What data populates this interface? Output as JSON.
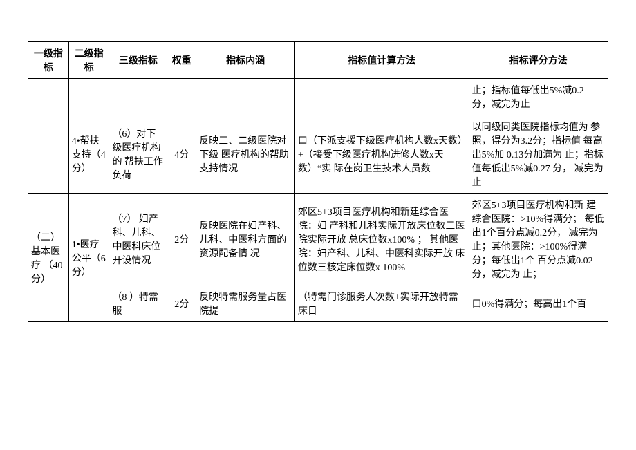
{
  "headers": {
    "l1": "一级指标",
    "l2": "二级指标",
    "l3": "三级指标",
    "w": "权重",
    "c": "指标内涵",
    "m": "指标值计算方法",
    "s": "指标评分方法"
  },
  "rows": {
    "r0": {
      "s": "止；指标值每低出5%减0.2 分，减完为止"
    },
    "r1": {
      "l2": "4•帮扶 支持（4分）",
      "l3": "（6）对下级医疗机构的 帮扶工作负荷",
      "w": "4分",
      "c": "反映三、二级医院对下级 医疗机构的帮助支持情况",
      "m": "口（下派支援下级医疗机构人数x天数）+（接受下级医疗机构进修人数x天数）“实 际在岗卫生技术人员数",
      "s": "以同级同类医院指标均值为 参照，得分为3.2分；指标值 每高出5%加 0.13分加满为 止；指标值每低出5%减0.27 分， 减完为止"
    },
    "r2": {
      "l1": "（二） 基本医 疗 （40 分）",
      "l2": "1•医疗 公平（6分）",
      "l3": "（7） 妇产科、儿科、中医科床位开设情况",
      "w": "2分",
      "c": "反映医院在妇产科、儿科、中医科方面的资源配备情 况",
      "m": "郊区5+3项目医疗机构和新建综合医院：妇 产科和儿科实际开放床位数三医院实际开放 总床位数x100% ；\n其他医院：妇产科、儿科、中医科实际开放 床位数三核定床位数x 100%",
      "s": "郊区5+3项目医疗机构和新 建综合医院：>10%得满分； 每低出1个百分点减0.2分， 减完为止；其他医院：>100%得满分；每低出1个 百分点减0.02分，减完为 止；"
    },
    "r3": {
      "l3": "（8 ）特需服",
      "w": "2分",
      "c": "反映特需服务量占医院提",
      "m": "（特需门诊服务人次数+实际开放特需床日",
      "s": "口0%得满分；每高出1个百"
    }
  }
}
